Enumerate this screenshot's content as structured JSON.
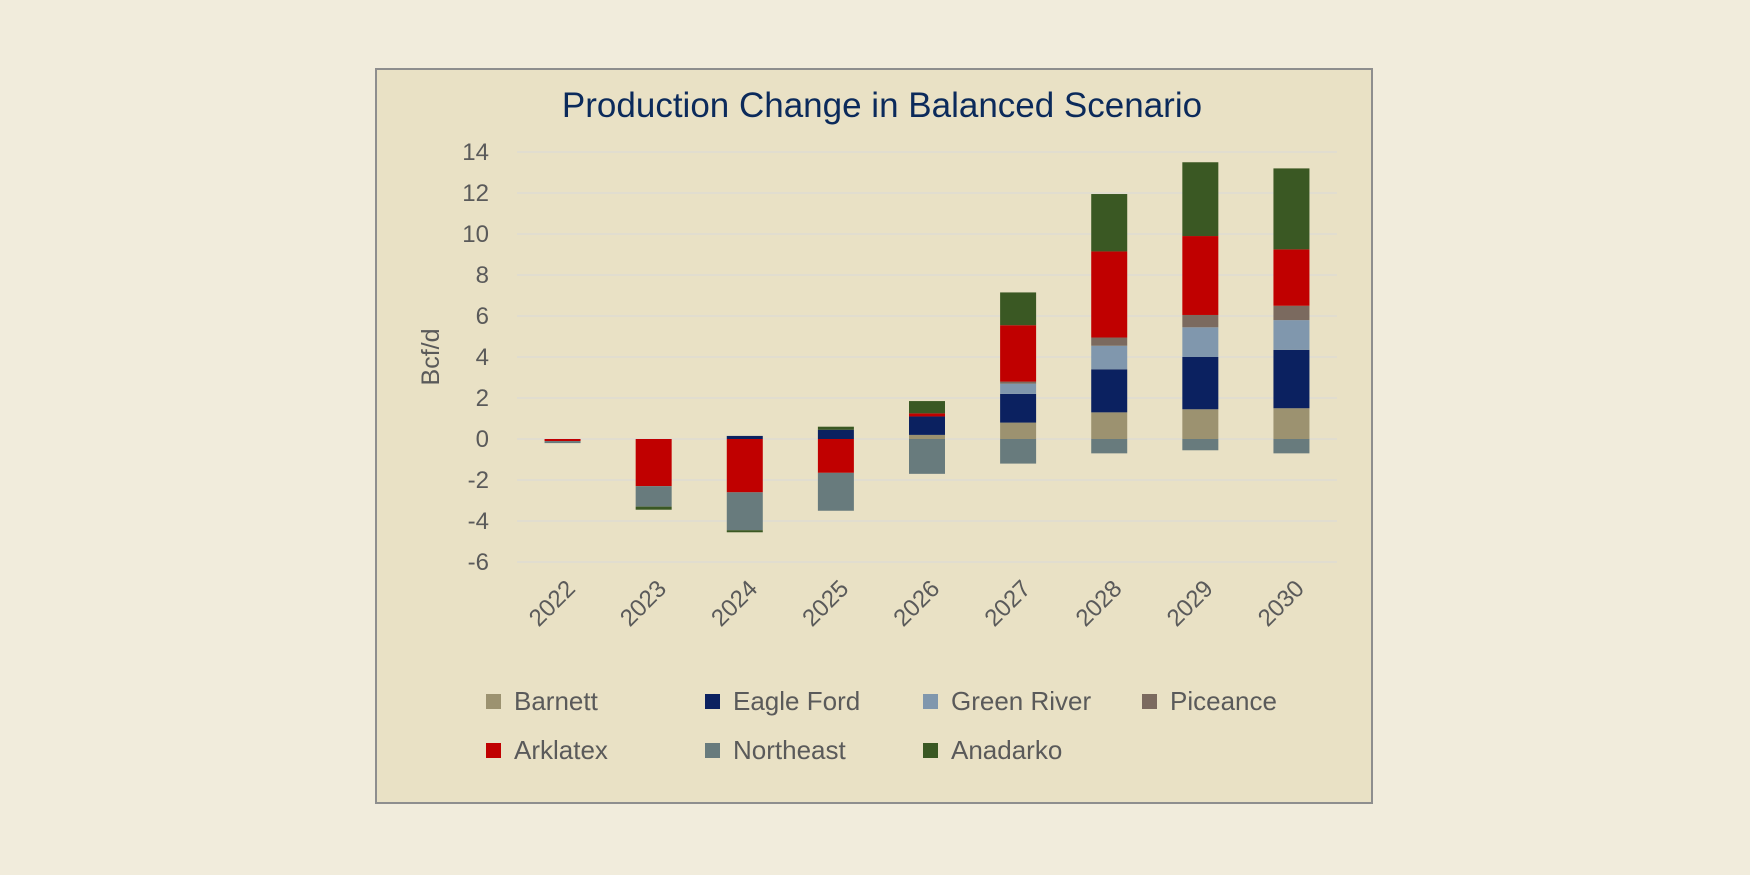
{
  "chart_data": {
    "type": "bar",
    "stacked": true,
    "title": "Production Change in Balanced Scenario",
    "xlabel": "",
    "ylabel": "Bcf/d",
    "ylim": [
      -6,
      14
    ],
    "yticks": [
      14,
      12,
      10,
      8,
      6,
      4,
      2,
      0,
      -2,
      -4,
      -6
    ],
    "grid": true,
    "legend_position": "bottom",
    "categories": [
      "2022",
      "2023",
      "2024",
      "2025",
      "2026",
      "2027",
      "2028",
      "2029",
      "2030"
    ],
    "series": [
      {
        "name": "Barnett",
        "color": "#9c9270",
        "values": [
          0,
          0,
          0,
          0,
          0.2,
          0.8,
          1.3,
          1.45,
          1.5
        ]
      },
      {
        "name": "Eagle Ford",
        "color": "#0b2160",
        "values": [
          0,
          0,
          0.15,
          0.45,
          0.9,
          1.4,
          2.1,
          2.55,
          2.85
        ]
      },
      {
        "name": "Green River",
        "color": "#8097ad",
        "values": [
          0,
          0,
          0,
          0,
          0,
          0.5,
          1.15,
          1.45,
          1.45
        ]
      },
      {
        "name": "Piceance",
        "color": "#7b6a5f",
        "values": [
          0,
          0,
          0,
          0,
          0,
          0.1,
          0.4,
          0.6,
          0.7
        ]
      },
      {
        "name": "Arklatex",
        "color": "#c00000",
        "values": [
          -0.1,
          -2.3,
          -2.6,
          -1.65,
          0.15,
          2.75,
          4.2,
          3.85,
          2.75
        ]
      },
      {
        "name": "Northeast",
        "color": "#687b7d",
        "values": [
          -0.1,
          -1.0,
          -1.85,
          -1.85,
          -1.7,
          -1.2,
          -0.7,
          -0.55,
          -0.7
        ]
      },
      {
        "name": "Anadarko",
        "color": "#3a5823",
        "values": [
          0,
          -0.15,
          -0.1,
          0.15,
          0.6,
          1.6,
          2.8,
          3.6,
          3.95
        ]
      }
    ]
  },
  "colors": {
    "page_background": "#f1ecdc",
    "panel_background": "#e9e1c5",
    "gridline": "#d9d9d9",
    "title": "#0b2a5b",
    "text": "#5a5a5a"
  }
}
